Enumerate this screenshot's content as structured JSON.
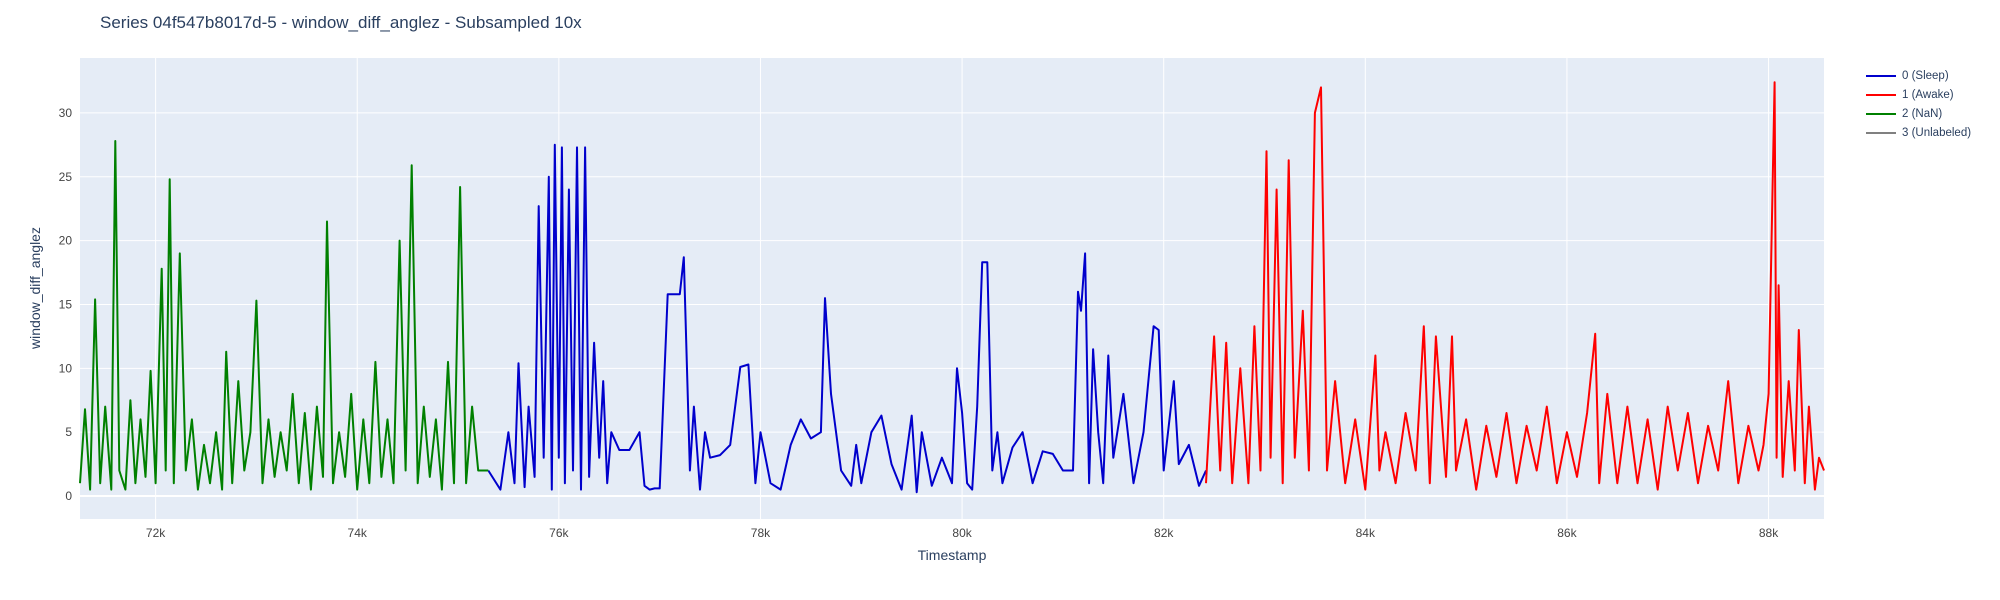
{
  "chart_data": {
    "type": "line",
    "title": "Series 04f547b8017d-5 - window_diff_anglez - Subsampled 10x",
    "xlabel": "Timestamp",
    "ylabel": "window_diff_anglez",
    "xlim": [
      71250,
      88550
    ],
    "ylim": [
      -1.8,
      34.3
    ],
    "x_ticks": [
      72000,
      74000,
      76000,
      78000,
      80000,
      82000,
      84000,
      86000,
      88000
    ],
    "x_tick_labels": [
      "72k",
      "74k",
      "76k",
      "78k",
      "80k",
      "82k",
      "84k",
      "86k",
      "88k"
    ],
    "y_ticks": [
      0,
      5,
      10,
      15,
      20,
      25,
      30
    ],
    "y_tick_labels": [
      "0",
      "5",
      "10",
      "15",
      "20",
      "25",
      "30"
    ],
    "grid": true,
    "legend_position": "right",
    "background": "#e5ecf6",
    "series": [
      {
        "name": "0 (Sleep)",
        "color": "#0000cc",
        "x": [
          75300,
          75420,
          75500,
          75560,
          75600,
          75660,
          75700,
          75760,
          75800,
          75850,
          75900,
          75930,
          75960,
          76000,
          76030,
          76060,
          76100,
          76140,
          76180,
          76220,
          76260,
          76300,
          76350,
          76400,
          76440,
          76480,
          76520,
          76600,
          76700,
          76800,
          76850,
          76900,
          76950,
          77000,
          77080,
          77200,
          77240,
          77300,
          77340,
          77400,
          77450,
          77500,
          77600,
          77700,
          77800,
          77880,
          77950,
          78000,
          78100,
          78200,
          78300,
          78400,
          78500,
          78600,
          78640,
          78700,
          78800,
          78900,
          78950,
          79000,
          79100,
          79200,
          79300,
          79400,
          79500,
          79550,
          79600,
          79700,
          79800,
          79900,
          79950,
          80000,
          80050,
          80100,
          80150,
          80200,
          80250,
          80300,
          80350,
          80400,
          80500,
          80600,
          80700,
          80800,
          80900,
          81000,
          81100,
          81150,
          81180,
          81220,
          81260,
          81300,
          81350,
          81400,
          81450,
          81500,
          81600,
          81700,
          81800,
          81900,
          81950,
          82000,
          82100,
          82150,
          82250,
          82350,
          82420
        ],
        "y": [
          2.0,
          0.5,
          5.0,
          1.0,
          10.4,
          0.7,
          7.0,
          1.5,
          22.7,
          3.0,
          25.0,
          0.5,
          27.5,
          3.0,
          27.3,
          1.0,
          24.0,
          2.0,
          27.3,
          0.5,
          27.3,
          1.5,
          12.0,
          3.0,
          9.0,
          1.0,
          5.0,
          3.6,
          3.6,
          5.0,
          0.8,
          0.5,
          0.6,
          0.6,
          15.8,
          15.8,
          18.7,
          2.0,
          7.0,
          0.5,
          5.0,
          3.0,
          3.2,
          4.0,
          10.1,
          10.3,
          1.0,
          5.0,
          1.0,
          0.5,
          4.0,
          6.0,
          4.5,
          5.0,
          15.5,
          8.0,
          2.0,
          0.8,
          4.0,
          1.0,
          5.0,
          6.3,
          2.5,
          0.5,
          6.3,
          0.3,
          5.0,
          0.8,
          3.0,
          1.0,
          10.0,
          6.5,
          1.0,
          0.5,
          7.0,
          18.3,
          18.3,
          2.0,
          5.0,
          1.0,
          3.8,
          5.0,
          1.0,
          3.5,
          3.3,
          2.0,
          2.0,
          16.0,
          14.5,
          19.0,
          1.0,
          11.5,
          5.0,
          1.0,
          11.0,
          3.0,
          8.0,
          1.0,
          5.0,
          13.3,
          13.0,
          2.0,
          9.0,
          2.5,
          4.0,
          0.8,
          2.0
        ]
      },
      {
        "name": "1 (Awake)",
        "color": "#ff0000",
        "x": [
          82420,
          82500,
          82560,
          82620,
          82680,
          82760,
          82840,
          82900,
          82960,
          83020,
          83060,
          83120,
          83180,
          83240,
          83300,
          83380,
          83440,
          83500,
          83560,
          83620,
          83700,
          83800,
          83900,
          84000,
          84100,
          84140,
          84200,
          84300,
          84400,
          84500,
          84580,
          84640,
          84700,
          84800,
          84860,
          84900,
          85000,
          85100,
          85200,
          85300,
          85400,
          85500,
          85600,
          85700,
          85800,
          85900,
          86000,
          86100,
          86200,
          86280,
          86320,
          86400,
          86500,
          86600,
          86700,
          86800,
          86900,
          87000,
          87100,
          87200,
          87300,
          87400,
          87500,
          87600,
          87700,
          87800,
          87900,
          87950,
          88000,
          88060,
          88080,
          88100,
          88140,
          88200,
          88260,
          88300,
          88360,
          88400,
          88460,
          88500,
          88550
        ],
        "y": [
          1.0,
          12.5,
          2.0,
          12.0,
          1.0,
          10.0,
          1.0,
          13.3,
          2.0,
          27.0,
          3.0,
          24.0,
          1.0,
          26.3,
          3.0,
          14.5,
          2.0,
          30.0,
          32.0,
          2.0,
          9.0,
          1.0,
          6.0,
          0.5,
          11.0,
          2.0,
          5.0,
          1.0,
          6.5,
          2.0,
          13.3,
          1.0,
          12.5,
          1.5,
          12.5,
          2.0,
          6.0,
          0.5,
          5.5,
          1.5,
          6.5,
          1.0,
          5.5,
          2.0,
          7.0,
          1.0,
          5.0,
          1.5,
          6.5,
          12.7,
          1.0,
          8.0,
          1.0,
          7.0,
          1.0,
          6.0,
          0.5,
          7.0,
          2.0,
          6.5,
          1.0,
          5.5,
          2.0,
          9.0,
          1.0,
          5.5,
          2.0,
          4.0,
          8.0,
          32.4,
          3.0,
          16.5,
          1.5,
          9.0,
          2.0,
          13.0,
          1.0,
          7.0,
          0.5,
          3.0,
          2.0
        ]
      },
      {
        "name": "2 (NaN)",
        "color": "#008000",
        "x": [
          71250,
          71300,
          71350,
          71400,
          71450,
          71500,
          71560,
          71600,
          71640,
          71700,
          71750,
          71800,
          71850,
          71900,
          71950,
          72000,
          72060,
          72100,
          72140,
          72180,
          72240,
          72300,
          72360,
          72420,
          72480,
          72540,
          72600,
          72660,
          72700,
          72760,
          72820,
          72880,
          72940,
          73000,
          73060,
          73120,
          73180,
          73240,
          73300,
          73360,
          73420,
          73480,
          73540,
          73600,
          73660,
          73700,
          73760,
          73820,
          73880,
          73940,
          74000,
          74060,
          74120,
          74180,
          74240,
          74300,
          74360,
          74420,
          74480,
          74540,
          74600,
          74660,
          74720,
          74780,
          74840,
          74900,
          74960,
          75020,
          75080,
          75140,
          75200,
          75300
        ],
        "y": [
          1.0,
          6.8,
          0.5,
          15.4,
          1.0,
          7.0,
          0.5,
          27.8,
          2.0,
          0.5,
          7.5,
          1.0,
          6.0,
          1.5,
          9.8,
          1.0,
          17.8,
          2.0,
          24.8,
          1.0,
          19.0,
          2.0,
          6.0,
          0.5,
          4.0,
          1.0,
          5.0,
          0.5,
          11.3,
          1.0,
          9.0,
          2.0,
          5.0,
          15.3,
          1.0,
          6.0,
          1.5,
          5.0,
          2.0,
          8.0,
          1.0,
          6.5,
          0.5,
          7.0,
          1.5,
          21.5,
          1.0,
          5.0,
          1.5,
          8.0,
          0.5,
          6.0,
          1.0,
          10.5,
          1.5,
          6.0,
          1.0,
          20.0,
          2.0,
          25.9,
          1.0,
          7.0,
          1.5,
          6.0,
          0.5,
          10.5,
          1.0,
          24.2,
          1.0,
          7.0,
          2.0,
          2.0
        ]
      },
      {
        "name": "3 (Unlabeled)",
        "color": "#808080",
        "x": [],
        "y": []
      }
    ]
  }
}
